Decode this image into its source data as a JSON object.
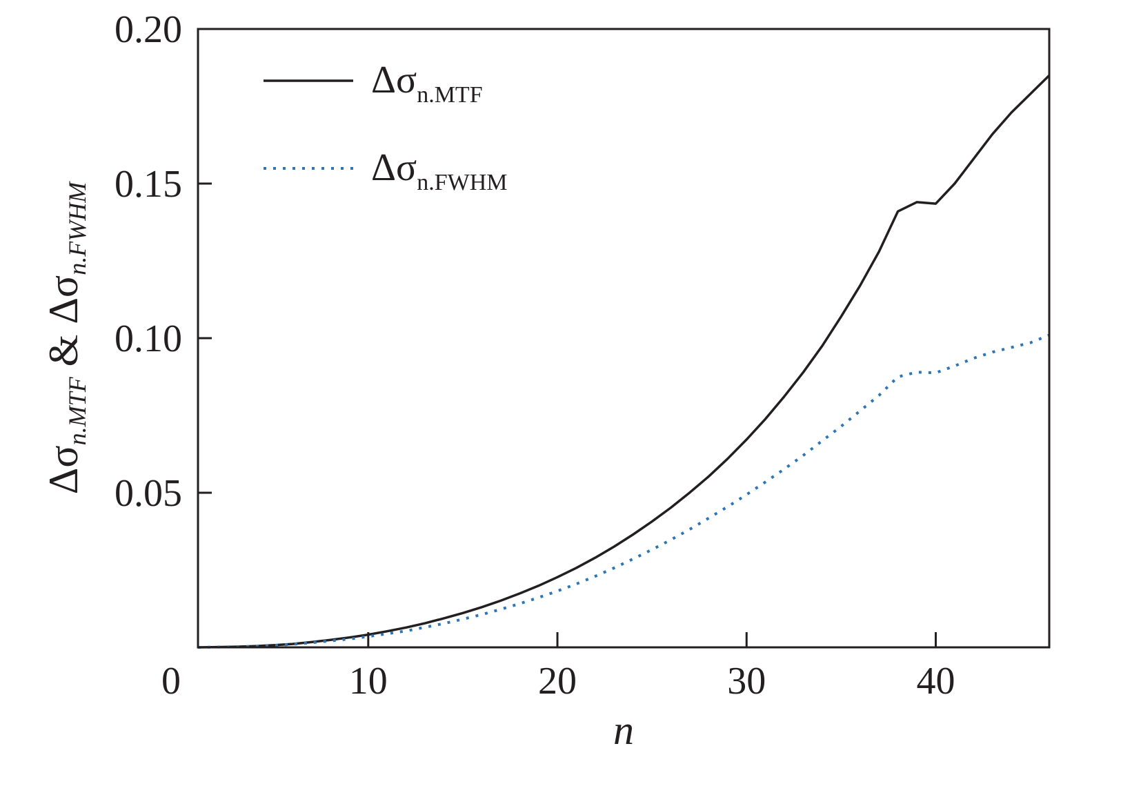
{
  "chart_data": {
    "type": "line",
    "title": "",
    "xlabel": "n",
    "ylabel": {
      "prefix": "Δσ",
      "sub1": "n.MTF",
      "joiner": " & ",
      "prefix2": "Δσ",
      "sub2": "n.FWHM"
    },
    "xlim": [
      1,
      46
    ],
    "ylim": [
      0.0,
      0.2
    ],
    "x_ticks": [
      0,
      10,
      20,
      30,
      40
    ],
    "y_ticks": [
      0.05,
      0.1,
      0.15,
      0.2
    ],
    "x_tick_labels": [
      "0",
      "10",
      "20",
      "30",
      "40"
    ],
    "y_tick_labels": [
      "0.05",
      "0.10",
      "0.15",
      "0.20"
    ],
    "grid": false,
    "legend_position": "top-left",
    "series": [
      {
        "name": "Δσn.MTF",
        "legend": {
          "prefix": "Δσ",
          "sub": "n.MTF"
        },
        "style": "solid",
        "color": "#231f20",
        "x": [
          1,
          2,
          3,
          4,
          5,
          6,
          7,
          8,
          9,
          10,
          11,
          12,
          13,
          14,
          15,
          16,
          17,
          18,
          19,
          20,
          21,
          22,
          23,
          24,
          25,
          26,
          27,
          28,
          29,
          30,
          31,
          32,
          33,
          34,
          35,
          36,
          37,
          38,
          39,
          40,
          41,
          42,
          43,
          44,
          45,
          46
        ],
        "y": [
          0.0,
          0.0001,
          0.0002,
          0.0004,
          0.0007,
          0.0011,
          0.0017,
          0.0024,
          0.0032,
          0.0041,
          0.0052,
          0.0064,
          0.0078,
          0.0094,
          0.0111,
          0.013,
          0.0151,
          0.0174,
          0.0199,
          0.0227,
          0.0257,
          0.029,
          0.0326,
          0.0365,
          0.0407,
          0.0452,
          0.0501,
          0.0553,
          0.061,
          0.0672,
          0.0739,
          0.0812,
          0.089,
          0.0975,
          0.107,
          0.117,
          0.128,
          0.141,
          0.144,
          0.1435,
          0.15,
          0.158,
          0.166,
          0.173,
          0.179,
          0.185
        ]
      },
      {
        "name": "Δσn.FWHM",
        "legend": {
          "prefix": "Δσ",
          "sub": "n.FWHM"
        },
        "style": "dotted",
        "color": "#2e75b6",
        "x": [
          1,
          2,
          3,
          4,
          5,
          6,
          7,
          8,
          9,
          10,
          11,
          12,
          13,
          14,
          15,
          16,
          17,
          18,
          19,
          20,
          21,
          22,
          23,
          24,
          25,
          26,
          27,
          28,
          29,
          30,
          31,
          32,
          33,
          34,
          35,
          36,
          37,
          38,
          39,
          40,
          41,
          42,
          43,
          44,
          45,
          46
        ],
        "y": [
          0.0,
          0.0001,
          0.0002,
          0.0003,
          0.0006,
          0.001,
          0.0015,
          0.0021,
          0.0027,
          0.0035,
          0.0044,
          0.0053,
          0.0065,
          0.0077,
          0.0091,
          0.0106,
          0.0123,
          0.0141,
          0.0161,
          0.0182,
          0.0205,
          0.023,
          0.0257,
          0.0286,
          0.0316,
          0.0348,
          0.0382,
          0.0418,
          0.0455,
          0.0494,
          0.0535,
          0.0577,
          0.0621,
          0.0668,
          0.0715,
          0.0765,
          0.0815,
          0.0875,
          0.089,
          0.0888,
          0.091,
          0.0935,
          0.0955,
          0.097,
          0.0985,
          0.101
        ]
      }
    ]
  }
}
